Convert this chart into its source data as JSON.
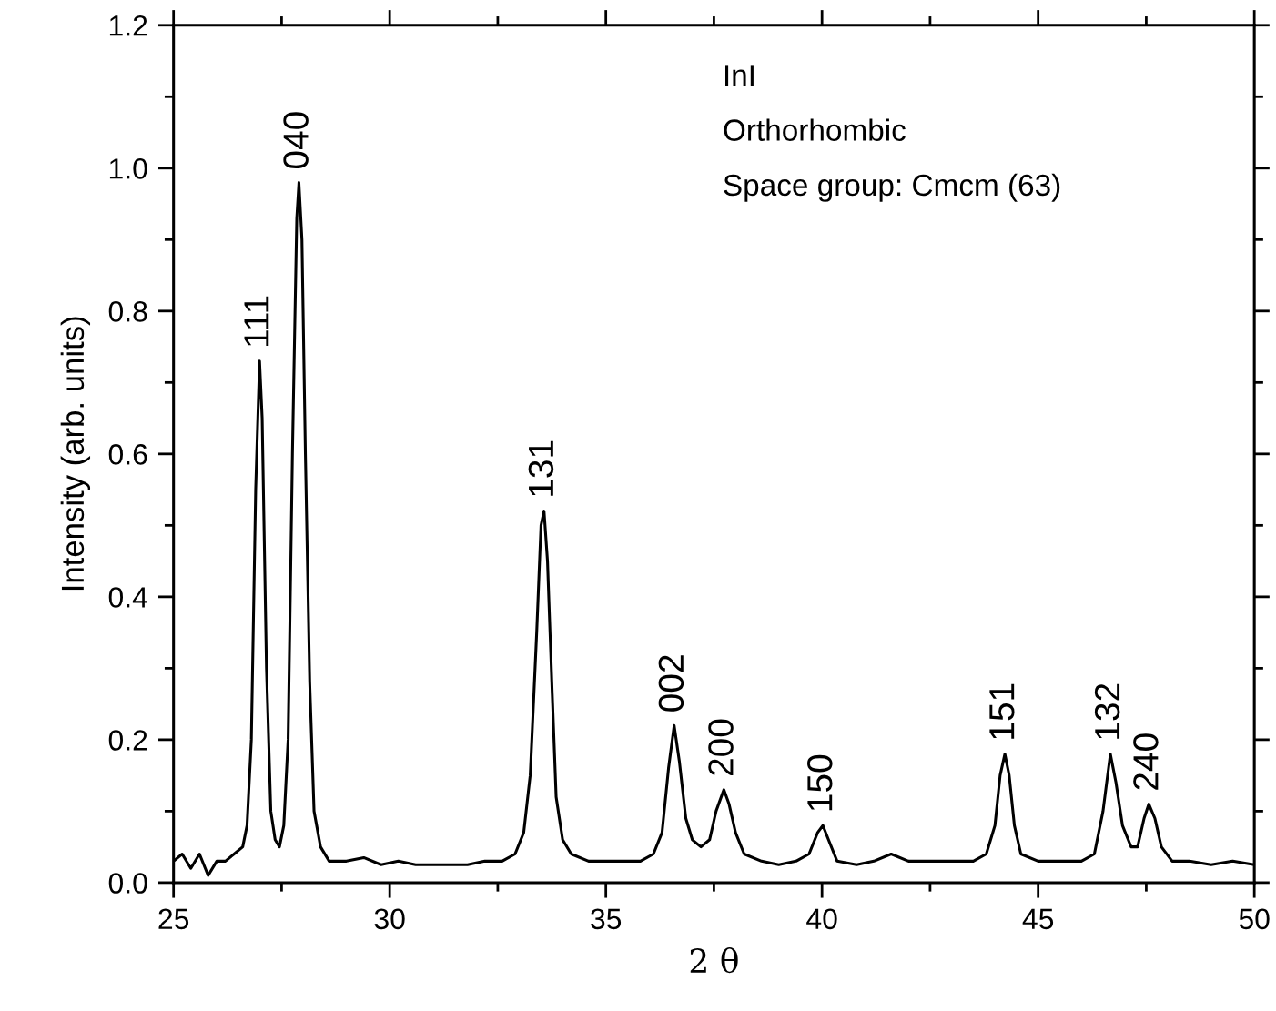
{
  "chart_data": {
    "type": "line",
    "xlabel": "2 θ",
    "ylabel": "Intensity (arb. units)",
    "xlim": [
      25,
      50
    ],
    "ylim": [
      0,
      1.2
    ],
    "xticks": [
      25,
      30,
      35,
      40,
      45,
      50
    ],
    "yticks": [
      {
        "value": 0,
        "label": "0.0"
      },
      {
        "value": 0.2,
        "label": "0.2"
      },
      {
        "value": 0.4,
        "label": "0.4"
      },
      {
        "value": 0.6,
        "label": "0.6"
      },
      {
        "value": 0.8,
        "label": "0.8"
      },
      {
        "value": 1.0,
        "label": "1.0"
      },
      {
        "value": 1.2,
        "label": "1.2"
      }
    ],
    "grid": false,
    "legend": false,
    "marker": "none",
    "line_style": "solid",
    "series": [
      {
        "color": "#000000",
        "x": [
          25.0,
          25.2,
          25.4,
          25.6,
          25.8,
          26.0,
          26.2,
          26.4,
          26.6,
          26.7,
          26.8,
          26.9,
          26.99,
          27.05,
          27.15,
          27.25,
          27.35,
          27.45,
          27.55,
          27.65,
          27.75,
          27.85,
          27.9,
          27.97,
          28.05,
          28.15,
          28.25,
          28.4,
          28.6,
          29.0,
          29.4,
          29.8,
          30.2,
          30.6,
          31.0,
          31.4,
          31.8,
          32.2,
          32.6,
          32.9,
          33.1,
          33.25,
          33.4,
          33.5,
          33.57,
          33.65,
          33.75,
          33.85,
          34.0,
          34.2,
          34.6,
          35.0,
          35.4,
          35.8,
          36.1,
          36.3,
          36.45,
          36.58,
          36.7,
          36.85,
          37.0,
          37.2,
          37.4,
          37.55,
          37.73,
          37.85,
          38.0,
          38.2,
          38.6,
          39.0,
          39.4,
          39.7,
          39.9,
          40.02,
          40.15,
          40.35,
          40.8,
          41.2,
          41.6,
          42.0,
          42.5,
          43.0,
          43.5,
          43.8,
          44.0,
          44.12,
          44.23,
          44.33,
          44.45,
          44.6,
          45.0,
          45.5,
          46.0,
          46.3,
          46.5,
          46.67,
          46.8,
          46.95,
          47.15,
          47.3,
          47.45,
          47.56,
          47.7,
          47.85,
          48.1,
          48.5,
          49.0,
          49.5,
          50.0
        ],
        "values": [
          0.03,
          0.04,
          0.02,
          0.04,
          0.01,
          0.03,
          0.03,
          0.04,
          0.05,
          0.08,
          0.2,
          0.55,
          0.73,
          0.65,
          0.3,
          0.1,
          0.06,
          0.05,
          0.08,
          0.2,
          0.6,
          0.93,
          0.98,
          0.9,
          0.6,
          0.28,
          0.1,
          0.05,
          0.03,
          0.03,
          0.035,
          0.025,
          0.03,
          0.025,
          0.025,
          0.025,
          0.025,
          0.03,
          0.03,
          0.04,
          0.07,
          0.15,
          0.35,
          0.5,
          0.52,
          0.45,
          0.28,
          0.12,
          0.06,
          0.04,
          0.03,
          0.03,
          0.03,
          0.03,
          0.04,
          0.07,
          0.16,
          0.22,
          0.17,
          0.09,
          0.06,
          0.05,
          0.06,
          0.1,
          0.13,
          0.11,
          0.07,
          0.04,
          0.03,
          0.025,
          0.03,
          0.04,
          0.07,
          0.08,
          0.06,
          0.03,
          0.025,
          0.03,
          0.04,
          0.03,
          0.03,
          0.03,
          0.03,
          0.04,
          0.08,
          0.15,
          0.18,
          0.15,
          0.08,
          0.04,
          0.03,
          0.03,
          0.03,
          0.04,
          0.1,
          0.18,
          0.14,
          0.08,
          0.05,
          0.05,
          0.09,
          0.11,
          0.09,
          0.05,
          0.03,
          0.03,
          0.025,
          0.03,
          0.025
        ]
      }
    ],
    "annotations": [
      "InI",
      "Orthorhombic",
      "Space group: Cmcm (63)",
      {
        "text": "111",
        "x": 26.99,
        "y": 0.73
      },
      {
        "text": "040",
        "x": 27.9,
        "y": 0.98
      },
      {
        "text": "131",
        "x": 33.57,
        "y": 0.52
      },
      {
        "text": "002",
        "x": 36.58,
        "y": 0.22
      },
      {
        "text": "200",
        "x": 37.73,
        "y": 0.13
      },
      {
        "text": "150",
        "x": 40.02,
        "y": 0.08
      },
      {
        "text": "151",
        "x": 44.23,
        "y": 0.18
      },
      {
        "text": "132",
        "x": 46.67,
        "y": 0.18
      },
      {
        "text": "240",
        "x": 47.56,
        "y": 0.11
      }
    ]
  }
}
